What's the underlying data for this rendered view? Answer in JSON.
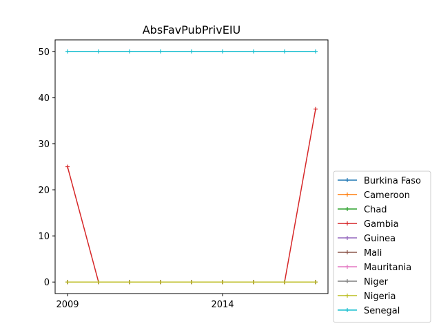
{
  "chart_data": {
    "type": "line",
    "title": "AbsFavPubPrivEIU",
    "xlabel": "",
    "ylabel": "",
    "x": [
      2009,
      2010,
      2011,
      2012,
      2013,
      2014,
      2015,
      2016,
      2017
    ],
    "x_tick_labels": [
      "2009",
      "2014"
    ],
    "x_tick_values": [
      2009,
      2014
    ],
    "y_ticks": [
      0,
      10,
      20,
      30,
      40,
      50
    ],
    "xlim": [
      2008.6,
      2017.4
    ],
    "ylim": [
      -2.5,
      52.5
    ],
    "grid": false,
    "legend_position": "outside right, lower",
    "marker": "+",
    "series": [
      {
        "name": "Burkina Faso",
        "color": "#1f77b4",
        "values": [
          0,
          0,
          0,
          0,
          0,
          0,
          0,
          0,
          0
        ]
      },
      {
        "name": "Cameroon",
        "color": "#ff7f0e",
        "values": [
          0,
          0,
          0,
          0,
          0,
          0,
          0,
          0,
          0
        ]
      },
      {
        "name": "Chad",
        "color": "#2ca02c",
        "values": [
          0,
          0,
          0,
          0,
          0,
          0,
          0,
          0,
          0
        ]
      },
      {
        "name": "Gambia",
        "color": "#d62728",
        "values": [
          25,
          0,
          0,
          0,
          0,
          0,
          0,
          0,
          37.5
        ]
      },
      {
        "name": "Guinea",
        "color": "#9467bd",
        "values": [
          0,
          0,
          0,
          0,
          0,
          0,
          0,
          0,
          0
        ]
      },
      {
        "name": "Mali",
        "color": "#8c564b",
        "values": [
          0,
          0,
          0,
          0,
          0,
          0,
          0,
          0,
          0
        ]
      },
      {
        "name": "Mauritania",
        "color": "#e377c2",
        "values": [
          0,
          0,
          0,
          0,
          0,
          0,
          0,
          0,
          0
        ]
      },
      {
        "name": "Niger",
        "color": "#7f7f7f",
        "values": [
          0,
          0,
          0,
          0,
          0,
          0,
          0,
          0,
          0
        ]
      },
      {
        "name": "Nigeria",
        "color": "#bcbd22",
        "values": [
          0,
          0,
          0,
          0,
          0,
          0,
          0,
          0,
          0
        ]
      },
      {
        "name": "Senegal",
        "color": "#17becf",
        "values": [
          50,
          50,
          50,
          50,
          50,
          50,
          50,
          50,
          50
        ]
      }
    ]
  }
}
